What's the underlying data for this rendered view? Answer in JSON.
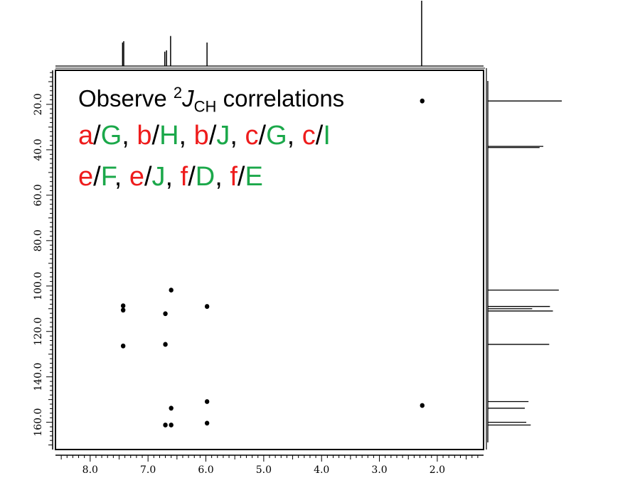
{
  "annotation": {
    "line1": {
      "text_before": "Observe ",
      "superscript": "2",
      "italic": "J",
      "subscript": "CH",
      "text_after": " correlations"
    },
    "pairs": [
      [
        {
          "h": "a",
          "c": "G"
        },
        {
          "h": "b",
          "c": "H"
        },
        {
          "h": "b",
          "c": "J"
        },
        {
          "h": "c",
          "c": "G"
        },
        {
          "h": "c",
          "c": "I"
        }
      ],
      [
        {
          "h": "e",
          "c": "F"
        },
        {
          "h": "e",
          "c": "J"
        },
        {
          "h": "f",
          "c": "D"
        },
        {
          "h": "f",
          "c": "E"
        }
      ]
    ],
    "h_color": "#ee1c1c",
    "c_color": "#1ba84a"
  },
  "chart_data": {
    "type": "heatmap",
    "title": "",
    "xlabel": "",
    "ylabel": "",
    "xlim": [
      8.6,
      1.2
    ],
    "ylim": [
      5.0,
      172.0
    ],
    "x_ticks": [
      "8.0",
      "7.0",
      "6.0",
      "5.0",
      "4.0",
      "3.0",
      "2.0"
    ],
    "y_ticks": [
      "20.0",
      "40.0",
      "60.0",
      "80.0",
      "100.0",
      "120.0",
      "140.0",
      "160.0"
    ],
    "cross_peaks": [
      {
        "x": 7.43,
        "y": 110.6
      },
      {
        "x": 7.43,
        "y": 108.7
      },
      {
        "x": 7.43,
        "y": 126.4
      },
      {
        "x": 6.7,
        "y": 112.2
      },
      {
        "x": 6.7,
        "y": 125.7
      },
      {
        "x": 6.7,
        "y": 161.2
      },
      {
        "x": 6.6,
        "y": 101.8
      },
      {
        "x": 6.6,
        "y": 153.8
      },
      {
        "x": 6.6,
        "y": 161.2
      },
      {
        "x": 5.98,
        "y": 109.0
      },
      {
        "x": 5.98,
        "y": 150.9
      },
      {
        "x": 5.98,
        "y": 160.4
      },
      {
        "x": 2.26,
        "y": 18.5
      },
      {
        "x": 2.26,
        "y": 152.6
      }
    ],
    "f2_projection": [
      {
        "ppm": 7.44,
        "intensity": 0.36
      },
      {
        "ppm": 7.42,
        "intensity": 0.38
      },
      {
        "ppm": 6.71,
        "intensity": 0.22
      },
      {
        "ppm": 6.68,
        "intensity": 0.24
      },
      {
        "ppm": 6.61,
        "intensity": 0.46
      },
      {
        "ppm": 5.98,
        "intensity": 0.36
      },
      {
        "ppm": 2.27,
        "intensity": 1.0
      }
    ],
    "f1_projection": [
      {
        "ppm": 18.5,
        "intensity": 1.0
      },
      {
        "ppm": 38.5,
        "intensity": 0.75
      },
      {
        "ppm": 39.0,
        "intensity": 0.7
      },
      {
        "ppm": 101.8,
        "intensity": 0.96
      },
      {
        "ppm": 109.0,
        "intensity": 0.84
      },
      {
        "ppm": 110.0,
        "intensity": 0.6
      },
      {
        "ppm": 111.0,
        "intensity": 0.88
      },
      {
        "ppm": 125.7,
        "intensity": 0.83
      },
      {
        "ppm": 150.9,
        "intensity": 0.55
      },
      {
        "ppm": 153.8,
        "intensity": 0.5
      },
      {
        "ppm": 160.0,
        "intensity": 0.52
      },
      {
        "ppm": 161.2,
        "intensity": 0.58
      }
    ],
    "grid": false,
    "legend": "none"
  }
}
